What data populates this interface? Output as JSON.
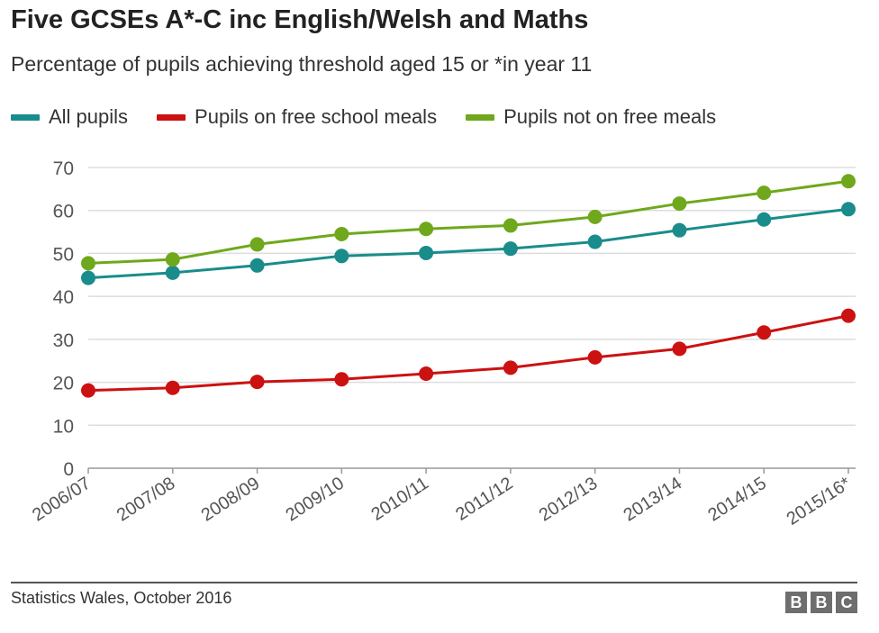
{
  "header": {
    "title": "Five GCSEs A*-C inc English/Welsh and Maths",
    "subtitle": "Percentage of pupils achieving threshold aged 15 or *in year 11"
  },
  "footer": {
    "source": "Statistics Wales, October 2016",
    "logo_letters": [
      "B",
      "B",
      "C"
    ]
  },
  "colors": {
    "all_pupils": "#1a8c8c",
    "free_meals": "#cc1111",
    "not_free_meals": "#6fa81c",
    "grid": "#dddddd",
    "axis_text": "#555555"
  },
  "chart_data": {
    "type": "line",
    "title": "Five GCSEs A*-C inc English/Welsh and Maths",
    "subtitle": "Percentage of pupils achieving threshold aged 15 or *in year 11",
    "xlabel": "",
    "ylabel": "",
    "categories": [
      "2006/07",
      "2007/08",
      "2008/09",
      "2009/10",
      "2010/11",
      "2011/12",
      "2012/13",
      "2013/14",
      "2014/15",
      "2015/16*"
    ],
    "ylim": [
      0,
      70
    ],
    "yticks": [
      0,
      10,
      20,
      30,
      40,
      50,
      60,
      70
    ],
    "grid": true,
    "legend_position": "top-left",
    "series": [
      {
        "name": "All pupils",
        "color": "#1a8c8c",
        "values": [
          44.3,
          45.5,
          47.2,
          49.4,
          50.1,
          51.1,
          52.7,
          55.4,
          57.9,
          60.3
        ]
      },
      {
        "name": "Pupils on free school meals",
        "color": "#cc1111",
        "values": [
          18.1,
          18.7,
          20.1,
          20.7,
          22.0,
          23.4,
          25.8,
          27.8,
          31.6,
          35.5
        ]
      },
      {
        "name": "Pupils not on free meals",
        "color": "#6fa81c",
        "values": [
          47.7,
          48.6,
          52.1,
          54.5,
          55.7,
          56.5,
          58.5,
          61.6,
          64.1,
          66.8
        ]
      }
    ]
  }
}
